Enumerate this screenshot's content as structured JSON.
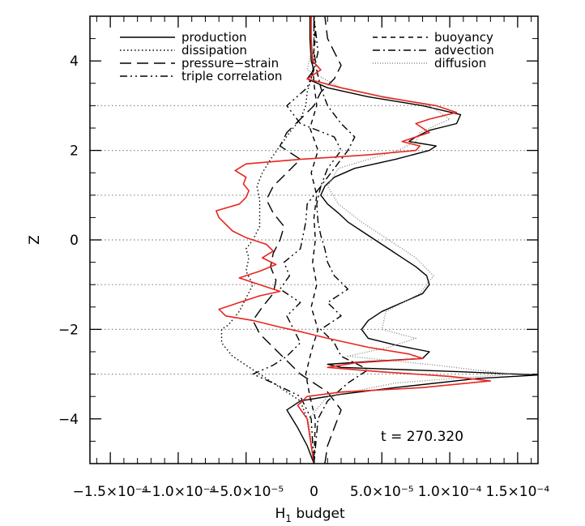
{
  "chart_data": {
    "type": "line",
    "xlabel": "H",
    "xlabel_sub": "1",
    "xlabel_suffix": " budget",
    "ylabel": "Z",
    "xlim": [
      -0.000165,
      0.000165
    ],
    "ylim": [
      -5,
      5
    ],
    "x_ticks": [
      {
        "value": -0.00015,
        "label": "−1.5×10⁻⁴"
      },
      {
        "value": -0.0001,
        "label": "−1.0×10⁻⁴"
      },
      {
        "value": -5e-05,
        "label": "−5.0×10⁻⁵"
      },
      {
        "value": 0,
        "label": "0"
      },
      {
        "value": 5e-05,
        "label": "5.0×10⁻⁵"
      },
      {
        "value": 0.0001,
        "label": "1.0×10⁻⁴"
      },
      {
        "value": 0.00015,
        "label": "1.5×10⁻⁴"
      }
    ],
    "y_ticks": [
      {
        "value": -4,
        "label": "−4"
      },
      {
        "value": -2,
        "label": "−2"
      },
      {
        "value": 0,
        "label": "0"
      },
      {
        "value": 2,
        "label": "2"
      },
      {
        "value": 4,
        "label": "4"
      }
    ],
    "hlines": [
      3,
      2,
      1,
      0,
      -1,
      -2,
      -3
    ],
    "annotation": "t = 270.320",
    "legend_left": [
      {
        "label": "production",
        "style": "solid"
      },
      {
        "label": "dissipation",
        "style": "dotted"
      },
      {
        "label": "pressure−strain",
        "style": "longdash"
      },
      {
        "label": "triple correlation",
        "style": "dashdotdot"
      }
    ],
    "legend_right": [
      {
        "label": "buoyancy",
        "style": "dashed"
      },
      {
        "label": "advection",
        "style": "dashdot"
      },
      {
        "label": "diffusion",
        "style": "finedot"
      }
    ],
    "series": [
      {
        "name": "production",
        "style": "solid",
        "color": "#000000",
        "y": [
          -5,
          -4.6,
          -4.2,
          -3.8,
          -3.6,
          -3.45,
          -3.3,
          -3.1,
          -3.02,
          -2.95,
          -2.85,
          -2.78,
          -2.72,
          -2.65,
          -2.5,
          -2.35,
          -2.2,
          -2.0,
          -1.8,
          -1.6,
          -1.4,
          -1.2,
          -1.0,
          -0.8,
          -0.6,
          -0.4,
          -0.2,
          0.0,
          0.2,
          0.4,
          0.6,
          0.8,
          1.0,
          1.2,
          1.4,
          1.6,
          1.8,
          2.0,
          2.1,
          2.2,
          2.3,
          2.45,
          2.6,
          2.8,
          3.0,
          3.2,
          3.4,
          3.6,
          3.8,
          4.0,
          4.5,
          5.0
        ],
        "x": [
          0.0,
          -5e-06,
          -1.2e-05,
          -2e-05,
          -1e-05,
          2e-05,
          6e-05,
          0.00012,
          0.000165,
          0.00011,
          2e-05,
          1e-05,
          4e-05,
          8e-05,
          8.5e-05,
          6e-05,
          4e-05,
          3.5e-05,
          4e-05,
          5e-05,
          6.5e-05,
          8e-05,
          8.5e-05,
          8.3e-05,
          7.5e-05,
          6.5e-05,
          5.5e-05,
          4.5e-05,
          3.5e-05,
          2.5e-05,
          1.8e-05,
          1e-05,
          5e-06,
          8e-06,
          1.5e-05,
          3e-05,
          6e-05,
          8.5e-05,
          9e-05,
          7e-05,
          7.5e-05,
          8.5e-05,
          0.000105,
          0.000108,
          8e-05,
          4e-05,
          1e-05,
          -5e-06,
          0.0,
          -2e-06,
          -3e-06,
          -3e-06
        ]
      },
      {
        "name": "dissipation",
        "style": "dotted",
        "color": "#000000",
        "y": [
          -5,
          -4.0,
          -3.6,
          -3.3,
          -3.0,
          -2.8,
          -2.6,
          -2.3,
          -2.0,
          -1.9,
          -1.6,
          -1.3,
          -1.0,
          -0.7,
          -0.4,
          -0.2,
          0.0,
          0.3,
          0.6,
          0.9,
          1.2,
          1.5,
          1.8,
          2.1,
          2.4,
          2.7,
          3.0,
          3.3,
          3.6,
          4.0,
          5.0
        ],
        "x": [
          0.0,
          -5e-06,
          -1e-05,
          -2.5e-05,
          -4e-05,
          -5e-05,
          -6e-05,
          -6.8e-05,
          -6.8e-05,
          -6.3e-05,
          -5.5e-05,
          -5e-05,
          -4.5e-05,
          -5e-05,
          -4.8e-05,
          -5e-05,
          -4.5e-05,
          -4e-05,
          -4e-05,
          -4e-05,
          -4.2e-05,
          -3.8e-05,
          -3.2e-05,
          -2.5e-05,
          -1.8e-05,
          -1e-05,
          -6e-06,
          -5e-06,
          -2e-06,
          0.0,
          0.0
        ]
      },
      {
        "name": "pressure-strain",
        "style": "longdash",
        "color": "#000000",
        "y": [
          -5,
          -4.6,
          -4.2,
          -3.8,
          -3.4,
          -3.0,
          -2.7,
          -2.4,
          -2.1,
          -1.8,
          -1.5,
          -1.2,
          -0.9,
          -0.6,
          -0.3,
          0.0,
          0.3,
          0.6,
          0.9,
          1.2,
          1.5,
          1.8,
          2.1,
          2.4,
          2.7,
          3.0,
          3.3,
          3.6,
          3.9,
          4.2,
          4.5,
          5.0
        ],
        "x": [
          8e-06,
          1e-05,
          1.5e-05,
          2e-05,
          1e-05,
          -1e-05,
          -2e-05,
          -3e-05,
          -4e-05,
          -4.5e-05,
          -3.8e-05,
          -3e-05,
          -2.8e-05,
          -3.2e-05,
          -3e-05,
          -2.5e-05,
          -2.2e-05,
          -3e-05,
          -3.5e-05,
          -3e-05,
          -2e-05,
          -1e-05,
          -2.5e-05,
          -2e-05,
          -1e-05,
          0.0,
          5e-06,
          1.5e-05,
          2e-05,
          1.5e-05,
          1e-05,
          8e-06
        ]
      },
      {
        "name": "triple correlation",
        "style": "dashdotdot",
        "color": "#000000",
        "y": [
          -5,
          -4.0,
          -3.5,
          -3.2,
          -3.0,
          -2.8,
          -2.6,
          -2.3,
          -2.0,
          -1.7,
          -1.4,
          -1.1,
          -0.8,
          -0.5,
          -0.2,
          0.1,
          0.4,
          0.8,
          1.2,
          1.6,
          2.0,
          2.3,
          2.6,
          3.0,
          3.4,
          3.8,
          4.2,
          5.0
        ],
        "x": [
          0.0,
          -2e-06,
          -1e-05,
          -3e-05,
          -4.5e-05,
          -3e-05,
          -2e-05,
          -1e-05,
          -1.5e-05,
          -2e-05,
          -1e-05,
          -2.5e-05,
          -1.8e-05,
          -2.2e-05,
          -1e-05,
          -8e-06,
          -6e-06,
          -5e-06,
          5e-06,
          1e-05,
          2e-05,
          1.5e-05,
          -1e-05,
          -2e-05,
          -5e-06,
          0.0,
          3e-06,
          0.0
        ]
      },
      {
        "name": "buoyancy",
        "style": "dashed",
        "color": "#000000",
        "y": [
          -5,
          -4.0,
          -3.5,
          -3.0,
          -2.5,
          -2.0,
          -1.5,
          -1.0,
          -0.5,
          0.0,
          0.5,
          1.0,
          1.5,
          2.0,
          2.5,
          3.0,
          3.5,
          4.0,
          4.5,
          5.0
        ],
        "x": [
          0.0,
          1e-06,
          -3e-06,
          -6e-06,
          -2e-06,
          3e-06,
          -2e-06,
          2e-06,
          -1e-06,
          1e-06,
          0.0,
          2e-06,
          -2e-06,
          3e-06,
          -3e-06,
          2e-06,
          0.0,
          -1e-06,
          1e-06,
          0.0
        ]
      },
      {
        "name": "advection",
        "style": "dashdot",
        "color": "#000000",
        "y": [
          -5,
          -4.0,
          -3.6,
          -3.2,
          -2.9,
          -2.6,
          -2.3,
          -2.0,
          -1.7,
          -1.4,
          -1.1,
          -0.8,
          -0.5,
          -0.2,
          0.1,
          0.4,
          0.8,
          1.2,
          1.6,
          2.0,
          2.3,
          2.6,
          3.0,
          3.4,
          3.8,
          4.2,
          5.0
        ],
        "x": [
          0.0,
          3e-06,
          1e-05,
          2.5e-05,
          4e-05,
          2e-05,
          1.5e-05,
          5e-06,
          2e-05,
          1e-05,
          2.5e-05,
          1.5e-05,
          1e-05,
          8e-06,
          5e-06,
          3e-06,
          2e-06,
          5e-06,
          1.5e-05,
          2.5e-05,
          3e-05,
          2e-05,
          1e-05,
          5e-06,
          2e-06,
          0.0,
          0.0
        ]
      },
      {
        "name": "diffusion",
        "style": "finedot",
        "color": "#888888",
        "y": [
          -5,
          -4.0,
          -3.5,
          -3.2,
          -3.0,
          -2.8,
          -2.6,
          -2.4,
          -2.2,
          -2.0,
          -1.6,
          -1.2,
          -0.8,
          -0.4,
          0.0,
          0.4,
          0.8,
          1.2,
          1.6,
          2.0,
          2.2,
          2.4,
          2.7,
          3.0,
          3.4,
          3.8,
          4.2,
          5.0
        ],
        "x": [
          0.0,
          -4e-06,
          1e-05,
          6e-05,
          0.000145,
          9e-05,
          2.5e-05,
          5.5e-05,
          7.5e-05,
          5e-05,
          5.3e-05,
          7.8e-05,
          8.8e-05,
          7.5e-05,
          5.5e-05,
          3.5e-05,
          1.8e-05,
          1e-05,
          1.8e-05,
          6.2e-05,
          7.5e-05,
          7.8e-05,
          0.0001,
          8.5e-05,
          2e-05,
          -5e-06,
          -2e-06,
          -2e-06
        ]
      },
      {
        "name": "",
        "style": "solid",
        "color": "#e8251f",
        "y": [
          -5,
          -4.0,
          -3.7,
          -3.5,
          -3.4,
          -3.3,
          -3.15,
          -3.05,
          -2.95,
          -2.85,
          -2.75,
          -2.65,
          -2.55,
          -2.4,
          -2.2,
          -2.05,
          -1.95,
          -1.8,
          -1.7,
          -1.55,
          -1.4,
          -1.25,
          -1.15,
          -1.0,
          -0.85,
          -0.7,
          -0.55,
          -0.4,
          -0.25,
          -0.1,
          0.05,
          0.2,
          0.35,
          0.5,
          0.65,
          0.8,
          0.95,
          1.1,
          1.25,
          1.4,
          1.55,
          1.7,
          1.8,
          1.9,
          2.0,
          2.1,
          2.2,
          2.3,
          2.4,
          2.5,
          2.6,
          2.7,
          2.85,
          3.0,
          3.2,
          3.4,
          3.6,
          3.8,
          4.0,
          4.5,
          5.0
        ],
        "x": [
          0.0,
          -5e-06,
          -1.2e-05,
          -5e-06,
          2e-05,
          8e-05,
          0.00013,
          0.0001,
          5e-05,
          1e-05,
          3e-05,
          8e-05,
          7e-05,
          4e-05,
          1e-05,
          -1e-05,
          -2.5e-05,
          -4.5e-05,
          -6.5e-05,
          -7e-05,
          -5.5e-05,
          -4e-05,
          -2.5e-05,
          -4e-05,
          -5.5e-05,
          -4e-05,
          -2.8e-05,
          -3.8e-05,
          -3e-05,
          -3.5e-05,
          -5e-05,
          -6e-05,
          -6.5e-05,
          -7e-05,
          -7.2e-05,
          -5.5e-05,
          -5e-05,
          -4.8e-05,
          -5.2e-05,
          -5e-05,
          -5.8e-05,
          -5e-05,
          -1e-05,
          4e-05,
          7.5e-05,
          7.8e-05,
          6.5e-05,
          7.5e-05,
          8.5e-05,
          8e-05,
          7.5e-05,
          8.5e-05,
          0.000105,
          9e-05,
          5e-05,
          2e-05,
          -5e-06,
          5e-06,
          -1e-06,
          -2e-06,
          -2e-06
        ]
      }
    ]
  }
}
